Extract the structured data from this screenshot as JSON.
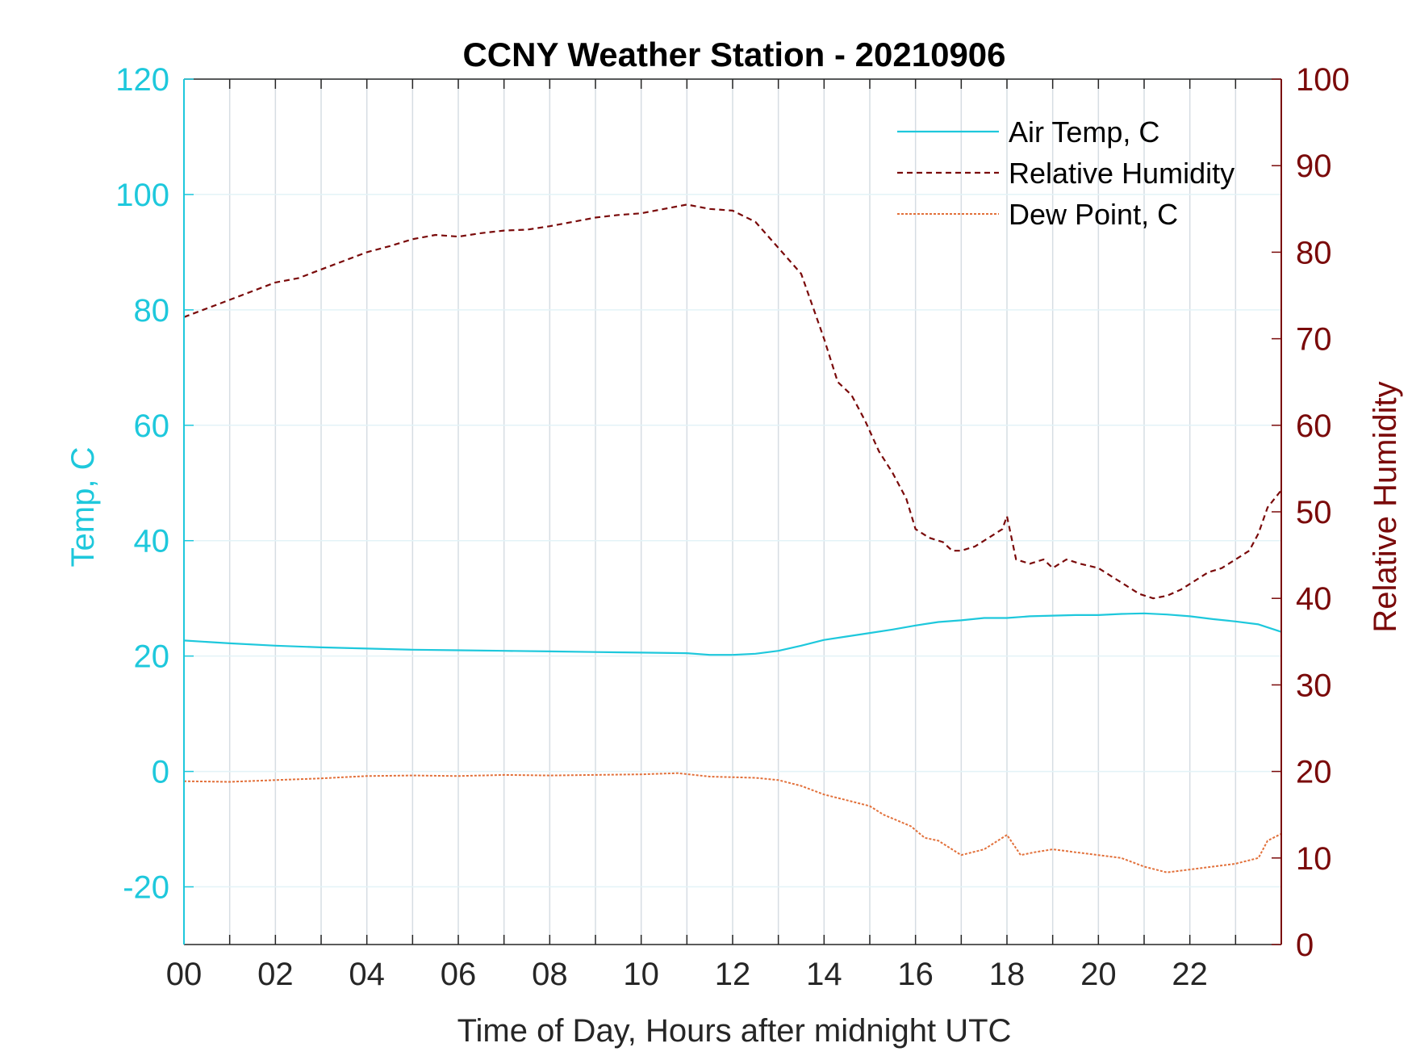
{
  "chart_data": {
    "type": "line",
    "title": "CCNY Weather Station - 20210906",
    "xlabel": "Time of Day, Hours after midnight UTC",
    "ylabel_left": "Temp, C",
    "ylabel_right": "Relative Humidity",
    "xlim": [
      0,
      24
    ],
    "ylim_left": [
      -30,
      120
    ],
    "ylim_right": [
      0,
      100
    ],
    "x_ticks": [
      0,
      2,
      4,
      6,
      8,
      10,
      12,
      14,
      16,
      18,
      20,
      22
    ],
    "x_tick_labels": [
      "00",
      "02",
      "04",
      "06",
      "08",
      "10",
      "12",
      "14",
      "16",
      "18",
      "20",
      "22"
    ],
    "y_left_ticks": [
      -20,
      0,
      20,
      40,
      60,
      80,
      100,
      120
    ],
    "y_left_tick_labels": [
      "-20",
      "0",
      "20",
      "40",
      "60",
      "80",
      "100",
      "120"
    ],
    "y_right_ticks": [
      0,
      10,
      20,
      30,
      40,
      50,
      60,
      70,
      80,
      90,
      100
    ],
    "y_right_tick_labels": [
      "0",
      "10",
      "20",
      "30",
      "40",
      "50",
      "60",
      "70",
      "80",
      "90",
      "100"
    ],
    "grid": true,
    "legend_position": "top-right",
    "colors": {
      "left_axis": "#1ec8dc",
      "right_axis": "#7a0a0a",
      "air_temp": "#1ec8dc",
      "humidity": "#7a0a0a",
      "dew_point": "#e2703a",
      "grid": "#d6dde3",
      "axis_box": "#262626"
    },
    "series": [
      {
        "name": "Air Temp, C",
        "axis": "left",
        "style": "solid",
        "x": [
          0,
          1,
          2,
          3,
          4,
          5,
          6,
          7,
          8,
          9,
          10,
          11,
          11.5,
          12,
          12.5,
          13,
          13.5,
          14,
          14.5,
          15,
          15.5,
          16,
          16.5,
          17,
          17.5,
          18,
          18.5,
          19,
          19.5,
          20,
          20.5,
          21,
          21.5,
          22,
          22.5,
          23,
          23.5,
          24
        ],
        "values": [
          22.7,
          22.2,
          21.8,
          21.5,
          21.3,
          21.1,
          21.0,
          20.9,
          20.8,
          20.7,
          20.6,
          20.5,
          20.2,
          20.2,
          20.4,
          20.9,
          21.8,
          22.8,
          23.4,
          24.0,
          24.6,
          25.3,
          25.9,
          26.2,
          26.6,
          26.6,
          26.9,
          27.0,
          27.1,
          27.1,
          27.3,
          27.4,
          27.2,
          26.9,
          26.4,
          26.0,
          25.5,
          24.2
        ]
      },
      {
        "name": "Relative Humidity",
        "axis": "right",
        "style": "dashed",
        "x": [
          0,
          0.5,
          1,
          1.5,
          2,
          2.5,
          3,
          3.5,
          4,
          4.5,
          5,
          5.5,
          6,
          6.5,
          7,
          7.5,
          8,
          8.5,
          9,
          9.5,
          10,
          10.5,
          11,
          11.5,
          12,
          12.5,
          13,
          13.5,
          13.8,
          14,
          14.3,
          14.6,
          14.9,
          15.2,
          15.5,
          15.8,
          16.0,
          16.3,
          16.6,
          16.8,
          17.0,
          17.3,
          17.6,
          17.9,
          18.0,
          18.2,
          18.5,
          18.8,
          19.0,
          19.3,
          19.6,
          20.0,
          20.3,
          20.6,
          20.9,
          21.2,
          21.5,
          21.8,
          22.1,
          22.4,
          22.7,
          23.0,
          23.3,
          23.5,
          23.7,
          24
        ],
        "values": [
          72.5,
          73.5,
          74.5,
          75.5,
          76.5,
          77.0,
          78.0,
          79.0,
          80.0,
          80.7,
          81.5,
          82.0,
          81.8,
          82.2,
          82.5,
          82.6,
          83.0,
          83.5,
          84.0,
          84.3,
          84.5,
          85.0,
          85.5,
          85.0,
          84.8,
          83.5,
          80.5,
          77.5,
          73.0,
          70.0,
          65.0,
          63.5,
          60.5,
          57.0,
          54.5,
          51.5,
          48.0,
          47.0,
          46.5,
          45.5,
          45.5,
          46.0,
          47.0,
          48.0,
          49.5,
          44.5,
          44.0,
          44.5,
          43.5,
          44.5,
          44.0,
          43.5,
          42.5,
          41.5,
          40.5,
          40.0,
          40.3,
          41.0,
          42.0,
          43.0,
          43.5,
          44.5,
          45.5,
          47.5,
          50.5,
          52.5
        ]
      },
      {
        "name": "Dew Point, C",
        "axis": "left",
        "style": "dotted",
        "x": [
          0,
          1,
          2,
          3,
          4,
          5,
          6,
          7,
          8,
          9,
          10,
          10.8,
          11.5,
          12,
          12.5,
          13,
          13.5,
          14,
          14.5,
          15,
          15.3,
          15.6,
          15.9,
          16.2,
          16.5,
          16.8,
          17.0,
          17.5,
          18.0,
          18.3,
          18.6,
          19.0,
          19.5,
          20.0,
          20.5,
          21.0,
          21.5,
          22.0,
          22.5,
          23.0,
          23.5,
          23.7,
          24
        ],
        "values": [
          -1.7,
          -1.8,
          -1.5,
          -1.2,
          -0.8,
          -0.7,
          -0.8,
          -0.6,
          -0.7,
          -0.6,
          -0.5,
          -0.3,
          -0.9,
          -1.0,
          -1.1,
          -1.5,
          -2.5,
          -4.0,
          -5.0,
          -6.0,
          -7.5,
          -8.5,
          -9.5,
          -11.5,
          -12.0,
          -13.5,
          -14.5,
          -13.5,
          -11.0,
          -14.5,
          -14.0,
          -13.5,
          -14.0,
          -14.5,
          -15.0,
          -16.5,
          -17.5,
          -17.0,
          -16.5,
          -16.0,
          -15.0,
          -12.0,
          -10.8
        ]
      }
    ]
  }
}
